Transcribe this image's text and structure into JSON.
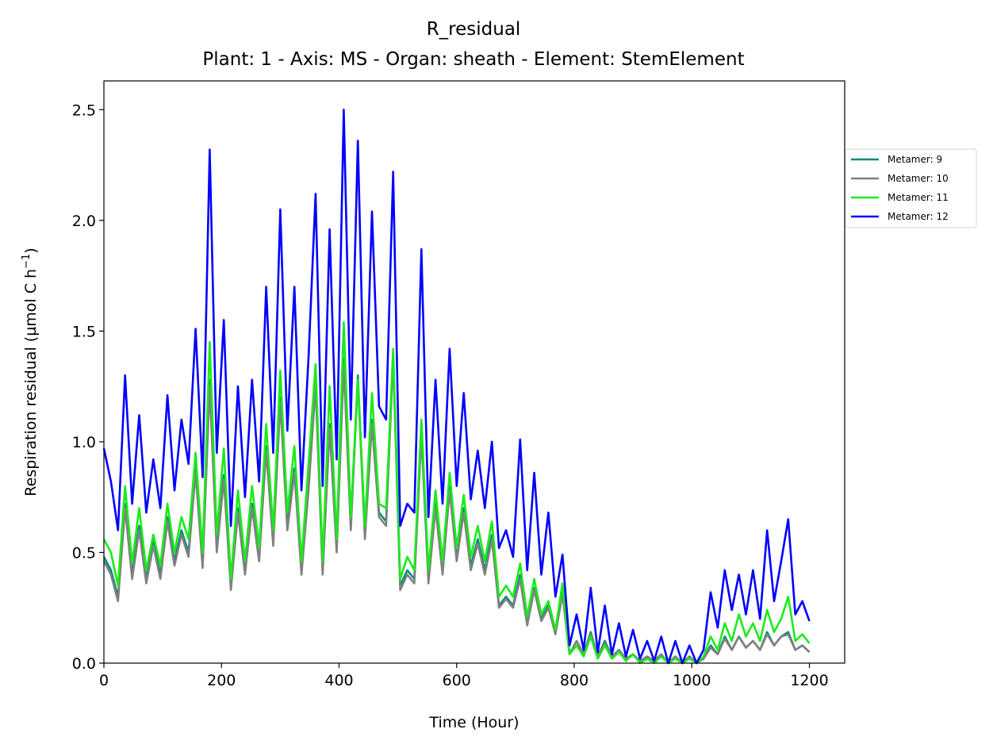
{
  "chart_data": {
    "type": "line",
    "title": "R_residual",
    "subtitle": "Plant: 1 - Axis: MS - Organ: sheath - Element: StemElement",
    "xlabel": "Time (Hour)",
    "ylabel": "Respiration residual (µmol C h",
    "ylabel_sup": "−1",
    "ylabel_end": ")",
    "xlim": [
      0,
      1260
    ],
    "ylim": [
      0,
      2.63
    ],
    "xticks": [
      0,
      200,
      400,
      600,
      800,
      1000,
      1200
    ],
    "xtick_labels": [
      "0",
      "200",
      "400",
      "600",
      "800",
      "1000",
      "1200"
    ],
    "yticks": [
      0,
      0.5,
      1.0,
      1.5,
      2.0,
      2.5
    ],
    "ytick_labels": [
      "0.0",
      "0.5",
      "1.0",
      "1.5",
      "2.0",
      "2.5"
    ],
    "grid": false,
    "legend_position": "right, outside plot",
    "x": [
      0,
      12,
      24,
      36,
      48,
      60,
      72,
      84,
      96,
      108,
      120,
      132,
      144,
      156,
      168,
      180,
      192,
      204,
      216,
      228,
      240,
      252,
      264,
      276,
      288,
      300,
      312,
      324,
      336,
      348,
      360,
      372,
      384,
      396,
      408,
      420,
      432,
      444,
      456,
      468,
      480,
      492,
      504,
      516,
      528,
      540,
      552,
      564,
      576,
      588,
      600,
      612,
      624,
      636,
      648,
      660,
      672,
      684,
      696,
      708,
      720,
      732,
      744,
      756,
      768,
      780,
      792,
      804,
      816,
      828,
      840,
      852,
      864,
      876,
      888,
      900,
      912,
      924,
      936,
      948,
      960,
      972,
      984,
      996,
      1008,
      1020,
      1032,
      1044,
      1056,
      1068,
      1080,
      1092,
      1104,
      1116,
      1128,
      1140,
      1152,
      1164,
      1176,
      1188,
      1200
    ],
    "series": [
      {
        "name": "Metamer: 9",
        "color": "#008b7a",
        "values": [
          0.48,
          0.42,
          0.3,
          0.72,
          0.4,
          0.62,
          0.38,
          0.55,
          0.4,
          0.66,
          0.46,
          0.6,
          0.5,
          0.88,
          0.45,
          1.28,
          0.52,
          0.85,
          0.35,
          0.7,
          0.42,
          0.72,
          0.48,
          0.98,
          0.55,
          1.2,
          0.62,
          0.88,
          0.42,
          0.8,
          1.28,
          0.42,
          1.08,
          0.52,
          1.38,
          0.62,
          1.3,
          0.58,
          1.1,
          0.68,
          0.64,
          1.4,
          0.35,
          0.42,
          0.38,
          1.05,
          0.38,
          0.72,
          0.42,
          0.8,
          0.48,
          0.7,
          0.44,
          0.56,
          0.42,
          0.58,
          0.26,
          0.3,
          0.26,
          0.4,
          0.18,
          0.34,
          0.2,
          0.26,
          0.14,
          0.32,
          0.04,
          0.1,
          0.04,
          0.14,
          0.03,
          0.1,
          0.03,
          0.06,
          0.02,
          0.04,
          0.01,
          0.03,
          0.01,
          0.04,
          0.0,
          0.03,
          0.0,
          0.03,
          0.0,
          0.02,
          0.08,
          0.04,
          0.12,
          0.06,
          0.12,
          0.07,
          0.1,
          0.06,
          0.14,
          0.08,
          0.12,
          0.14,
          0.06,
          0.08,
          0.05
        ]
      },
      {
        "name": "Metamer: 10",
        "color": "#808080",
        "values": [
          0.46,
          0.4,
          0.28,
          0.7,
          0.38,
          0.6,
          0.36,
          0.53,
          0.38,
          0.64,
          0.44,
          0.58,
          0.48,
          0.86,
          0.43,
          1.25,
          0.5,
          0.83,
          0.33,
          0.68,
          0.4,
          0.7,
          0.46,
          0.96,
          0.53,
          1.18,
          0.6,
          0.86,
          0.4,
          0.78,
          1.25,
          0.4,
          1.06,
          0.5,
          1.35,
          0.6,
          1.28,
          0.56,
          1.08,
          0.66,
          0.62,
          1.38,
          0.33,
          0.4,
          0.36,
          1.03,
          0.36,
          0.7,
          0.4,
          0.78,
          0.46,
          0.68,
          0.42,
          0.54,
          0.4,
          0.56,
          0.25,
          0.29,
          0.25,
          0.38,
          0.17,
          0.33,
          0.19,
          0.25,
          0.13,
          0.31,
          0.04,
          0.1,
          0.04,
          0.13,
          0.03,
          0.09,
          0.03,
          0.06,
          0.02,
          0.04,
          0.01,
          0.03,
          0.01,
          0.04,
          0.0,
          0.03,
          0.0,
          0.03,
          0.0,
          0.02,
          0.07,
          0.04,
          0.11,
          0.06,
          0.12,
          0.07,
          0.1,
          0.06,
          0.13,
          0.08,
          0.12,
          0.13,
          0.06,
          0.08,
          0.05
        ]
      },
      {
        "name": "Metamer: 11",
        "color": "#1aeb1a",
        "values": [
          0.56,
          0.5,
          0.35,
          0.8,
          0.45,
          0.7,
          0.42,
          0.58,
          0.44,
          0.72,
          0.5,
          0.66,
          0.56,
          0.95,
          0.5,
          1.45,
          0.58,
          0.97,
          0.38,
          0.78,
          0.46,
          0.8,
          0.52,
          1.08,
          0.6,
          1.32,
          0.68,
          0.98,
          0.46,
          0.9,
          1.35,
          0.46,
          1.25,
          0.56,
          1.54,
          0.66,
          1.28,
          0.62,
          1.22,
          0.72,
          0.7,
          1.42,
          0.38,
          0.48,
          0.42,
          1.1,
          0.42,
          0.78,
          0.46,
          0.86,
          0.52,
          0.76,
          0.48,
          0.62,
          0.46,
          0.64,
          0.3,
          0.35,
          0.3,
          0.45,
          0.21,
          0.38,
          0.22,
          0.28,
          0.15,
          0.36,
          0.04,
          0.08,
          0.03,
          0.12,
          0.02,
          0.08,
          0.02,
          0.05,
          0.01,
          0.04,
          0.0,
          0.02,
          0.0,
          0.03,
          0.0,
          0.02,
          0.0,
          0.02,
          0.0,
          0.03,
          0.12,
          0.06,
          0.18,
          0.1,
          0.22,
          0.12,
          0.18,
          0.1,
          0.24,
          0.14,
          0.2,
          0.3,
          0.1,
          0.13,
          0.09
        ]
      },
      {
        "name": "Metamer: 12",
        "color": "#0000ff",
        "values": [
          0.97,
          0.82,
          0.6,
          1.3,
          0.72,
          1.12,
          0.68,
          0.92,
          0.7,
          1.21,
          0.78,
          1.1,
          0.9,
          1.51,
          0.84,
          2.32,
          0.95,
          1.55,
          0.62,
          1.25,
          0.75,
          1.28,
          0.82,
          1.7,
          0.95,
          2.05,
          1.05,
          1.7,
          0.78,
          1.38,
          2.12,
          0.8,
          1.96,
          0.92,
          2.5,
          1.1,
          2.36,
          1.02,
          2.04,
          1.16,
          1.1,
          2.22,
          0.62,
          0.72,
          0.68,
          1.87,
          0.66,
          1.28,
          0.72,
          1.42,
          0.8,
          1.22,
          0.74,
          0.96,
          0.7,
          1.0,
          0.52,
          0.6,
          0.48,
          1.01,
          0.42,
          0.86,
          0.4,
          0.68,
          0.3,
          0.49,
          0.08,
          0.22,
          0.06,
          0.34,
          0.05,
          0.26,
          0.04,
          0.18,
          0.03,
          0.15,
          0.02,
          0.1,
          0.01,
          0.12,
          0.0,
          0.1,
          0.0,
          0.08,
          0.0,
          0.06,
          0.32,
          0.16,
          0.42,
          0.24,
          0.4,
          0.22,
          0.42,
          0.2,
          0.6,
          0.28,
          0.46,
          0.65,
          0.22,
          0.28,
          0.19
        ]
      }
    ]
  }
}
